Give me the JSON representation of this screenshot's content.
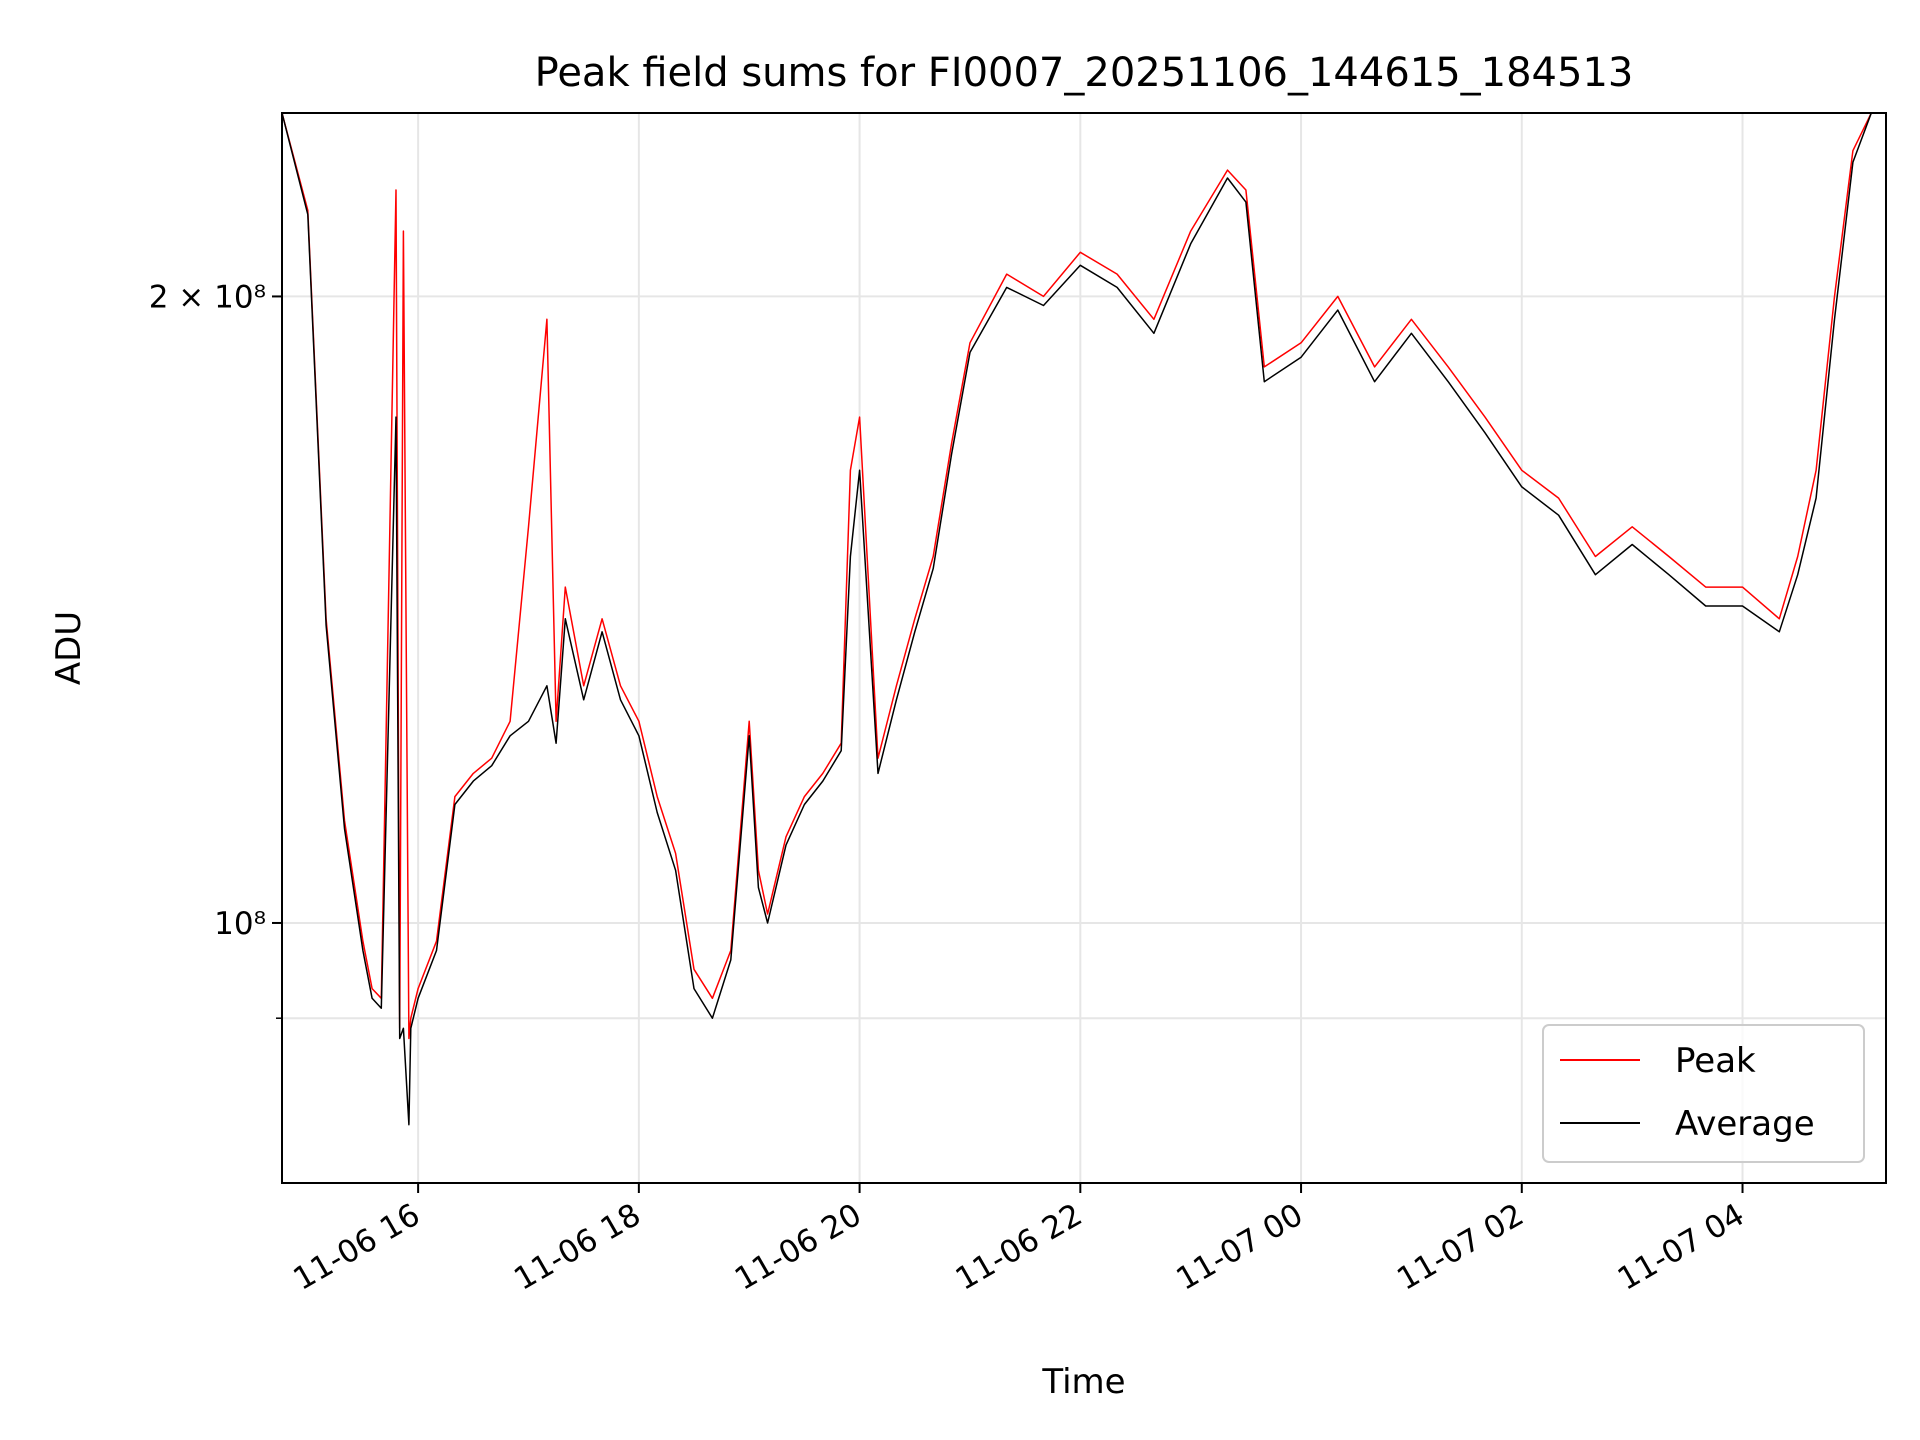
{
  "chart_data": {
    "type": "line",
    "title": "Peak field sums for FI0007_20251106_144615_184513",
    "xlabel": "Time",
    "ylabel": "ADU",
    "yscale": "log",
    "xlim": [
      "2025-11-06 14:46",
      "2025-11-07 05:18"
    ],
    "ylim": [
      75000000,
      245000000
    ],
    "grid": true,
    "legend_position": "lower right",
    "x_ticks": [
      {
        "value": "2025-11-06 16:00",
        "label": "11-06 16"
      },
      {
        "value": "2025-11-06 18:00",
        "label": "11-06 18"
      },
      {
        "value": "2025-11-06 20:00",
        "label": "11-06 20"
      },
      {
        "value": "2025-11-06 22:00",
        "label": "11-06 22"
      },
      {
        "value": "2025-11-07 00:00",
        "label": "11-07 00"
      },
      {
        "value": "2025-11-07 02:00",
        "label": "11-07 02"
      },
      {
        "value": "2025-11-07 04:00",
        "label": "11-07 04"
      }
    ],
    "y_ticks": [
      {
        "value": 100000000,
        "label": "10⁸"
      },
      {
        "value": 200000000,
        "label": "2 × 10⁸"
      }
    ],
    "y_minor_ticks": [
      90000000
    ],
    "series": [
      {
        "name": "Peak",
        "color": "#ff0000",
        "x": [
          "2025-11-06 14:46",
          "2025-11-06 15:00",
          "2025-11-06 15:10",
          "2025-11-06 15:20",
          "2025-11-06 15:30",
          "2025-11-06 15:35",
          "2025-11-06 15:40",
          "2025-11-06 15:48",
          "2025-11-06 15:50",
          "2025-11-06 15:52",
          "2025-11-06 15:55",
          "2025-11-06 15:56",
          "2025-11-06 16:00",
          "2025-11-06 16:10",
          "2025-11-06 16:20",
          "2025-11-06 16:30",
          "2025-11-06 16:40",
          "2025-11-06 16:50",
          "2025-11-06 17:00",
          "2025-11-06 17:10",
          "2025-11-06 17:15",
          "2025-11-06 17:20",
          "2025-11-06 17:30",
          "2025-11-06 17:40",
          "2025-11-06 17:50",
          "2025-11-06 18:00",
          "2025-11-06 18:10",
          "2025-11-06 18:20",
          "2025-11-06 18:30",
          "2025-11-06 18:40",
          "2025-11-06 18:50",
          "2025-11-06 19:00",
          "2025-11-06 19:05",
          "2025-11-06 19:10",
          "2025-11-06 19:20",
          "2025-11-06 19:30",
          "2025-11-06 19:40",
          "2025-11-06 19:50",
          "2025-11-06 19:55",
          "2025-11-06 20:00",
          "2025-11-06 20:10",
          "2025-11-06 20:20",
          "2025-11-06 20:30",
          "2025-11-06 20:40",
          "2025-11-06 20:50",
          "2025-11-06 21:00",
          "2025-11-06 21:20",
          "2025-11-06 21:40",
          "2025-11-06 22:00",
          "2025-11-06 22:20",
          "2025-11-06 22:40",
          "2025-11-06 23:00",
          "2025-11-06 23:20",
          "2025-11-06 23:30",
          "2025-11-06 23:40",
          "2025-11-07 00:00",
          "2025-11-07 00:20",
          "2025-11-07 00:40",
          "2025-11-07 01:00",
          "2025-11-07 01:20",
          "2025-11-07 01:40",
          "2025-11-07 02:00",
          "2025-11-07 02:20",
          "2025-11-07 02:40",
          "2025-11-07 03:00",
          "2025-11-07 03:20",
          "2025-11-07 03:40",
          "2025-11-07 04:00",
          "2025-11-07 04:20",
          "2025-11-07 04:30",
          "2025-11-07 04:40",
          "2025-11-07 04:50",
          "2025-11-07 05:00",
          "2025-11-07 05:10"
        ],
        "values": [
          245000000,
          220000000,
          140000000,
          112000000,
          98000000,
          93000000,
          92000000,
          225000000,
          89000000,
          215000000,
          88000000,
          90000000,
          93000000,
          98000000,
          115000000,
          118000000,
          120000000,
          125000000,
          155000000,
          195000000,
          125000000,
          145000000,
          130000000,
          140000000,
          130000000,
          125000000,
          115000000,
          108000000,
          95000000,
          92000000,
          97000000,
          125000000,
          106000000,
          101000000,
          110000000,
          115000000,
          118000000,
          122000000,
          165000000,
          175000000,
          120000000,
          130000000,
          140000000,
          150000000,
          170000000,
          190000000,
          205000000,
          200000000,
          210000000,
          205000000,
          195000000,
          215000000,
          230000000,
          225000000,
          185000000,
          190000000,
          200000000,
          185000000,
          195000000,
          185000000,
          175000000,
          165000000,
          160000000,
          150000000,
          155000000,
          150000000,
          145000000,
          145000000,
          140000000,
          150000000,
          165000000,
          200000000,
          235000000,
          245000000
        ]
      },
      {
        "name": "Average",
        "color": "#000000",
        "x": [
          "2025-11-06 14:46",
          "2025-11-06 15:00",
          "2025-11-06 15:10",
          "2025-11-06 15:20",
          "2025-11-06 15:30",
          "2025-11-06 15:35",
          "2025-11-06 15:40",
          "2025-11-06 15:48",
          "2025-11-06 15:50",
          "2025-11-06 15:52",
          "2025-11-06 15:55",
          "2025-11-06 15:56",
          "2025-11-06 16:00",
          "2025-11-06 16:10",
          "2025-11-06 16:20",
          "2025-11-06 16:30",
          "2025-11-06 16:40",
          "2025-11-06 16:50",
          "2025-11-06 17:00",
          "2025-11-06 17:10",
          "2025-11-06 17:15",
          "2025-11-06 17:20",
          "2025-11-06 17:30",
          "2025-11-06 17:40",
          "2025-11-06 17:50",
          "2025-11-06 18:00",
          "2025-11-06 18:10",
          "2025-11-06 18:20",
          "2025-11-06 18:30",
          "2025-11-06 18:40",
          "2025-11-06 18:50",
          "2025-11-06 19:00",
          "2025-11-06 19:05",
          "2025-11-06 19:10",
          "2025-11-06 19:20",
          "2025-11-06 19:30",
          "2025-11-06 19:40",
          "2025-11-06 19:50",
          "2025-11-06 19:55",
          "2025-11-06 20:00",
          "2025-11-06 20:10",
          "2025-11-06 20:20",
          "2025-11-06 20:30",
          "2025-11-06 20:40",
          "2025-11-06 20:50",
          "2025-11-06 21:00",
          "2025-11-06 21:20",
          "2025-11-06 21:40",
          "2025-11-06 22:00",
          "2025-11-06 22:20",
          "2025-11-06 22:40",
          "2025-11-06 23:00",
          "2025-11-06 23:20",
          "2025-11-06 23:30",
          "2025-11-06 23:40",
          "2025-11-07 00:00",
          "2025-11-07 00:20",
          "2025-11-07 00:40",
          "2025-11-07 01:00",
          "2025-11-07 01:20",
          "2025-11-07 01:40",
          "2025-11-07 02:00",
          "2025-11-07 02:20",
          "2025-11-07 02:40",
          "2025-11-07 03:00",
          "2025-11-07 03:20",
          "2025-11-07 03:40",
          "2025-11-07 04:00",
          "2025-11-07 04:20",
          "2025-11-07 04:30",
          "2025-11-07 04:40",
          "2025-11-07 04:50",
          "2025-11-07 05:00",
          "2025-11-07 05:10"
        ],
        "values": [
          245000000,
          219000000,
          139000000,
          111000000,
          97000000,
          92000000,
          91000000,
          175000000,
          88000000,
          89000000,
          80000000,
          89000000,
          92000000,
          97000000,
          114000000,
          117000000,
          119000000,
          123000000,
          125000000,
          130000000,
          122000000,
          140000000,
          128000000,
          138000000,
          128000000,
          123000000,
          113000000,
          106000000,
          93000000,
          90000000,
          96000000,
          123000000,
          104000000,
          100000000,
          109000000,
          114000000,
          117000000,
          121000000,
          150000000,
          165000000,
          118000000,
          128000000,
          138000000,
          148000000,
          168000000,
          188000000,
          202000000,
          198000000,
          207000000,
          202000000,
          192000000,
          212000000,
          228000000,
          222000000,
          182000000,
          187000000,
          197000000,
          182000000,
          192000000,
          182000000,
          172000000,
          162000000,
          157000000,
          147000000,
          152000000,
          147000000,
          142000000,
          142000000,
          138000000,
          147000000,
          160000000,
          195000000,
          232000000,
          245000000
        ]
      }
    ]
  }
}
